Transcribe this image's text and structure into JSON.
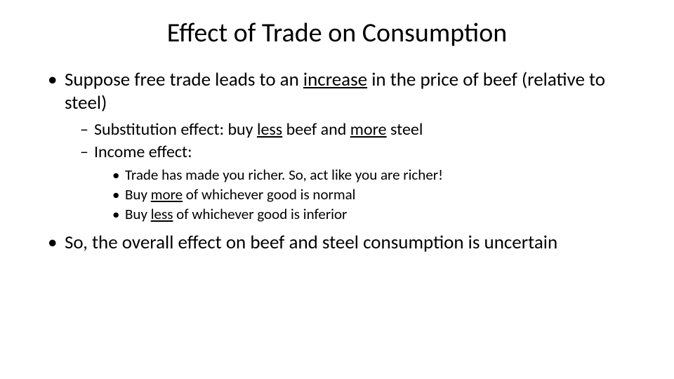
{
  "title": "Effect of Trade on Consumption",
  "bullets": {
    "b1_pre": "Suppose free trade leads to an ",
    "b1_u": "increase",
    "b1_post": " in the price of beef (relative to steel)",
    "b1a_pre": "Substitution effect: buy ",
    "b1a_u1": "less",
    "b1a_mid": " beef and ",
    "b1a_u2": "more",
    "b1a_post": " steel",
    "b1b": "Income effect:",
    "b1b_i": "Trade has made you richer. So, act like you are richer!",
    "b1b_ii_pre": "Buy ",
    "b1b_ii_u": "more",
    "b1b_ii_post": " of whichever good is normal",
    "b1b_iii_pre": "Buy ",
    "b1b_iii_u": "less",
    "b1b_iii_post": " of whichever good is inferior",
    "b2": "So, the overall effect on beef and steel consumption is uncertain"
  }
}
